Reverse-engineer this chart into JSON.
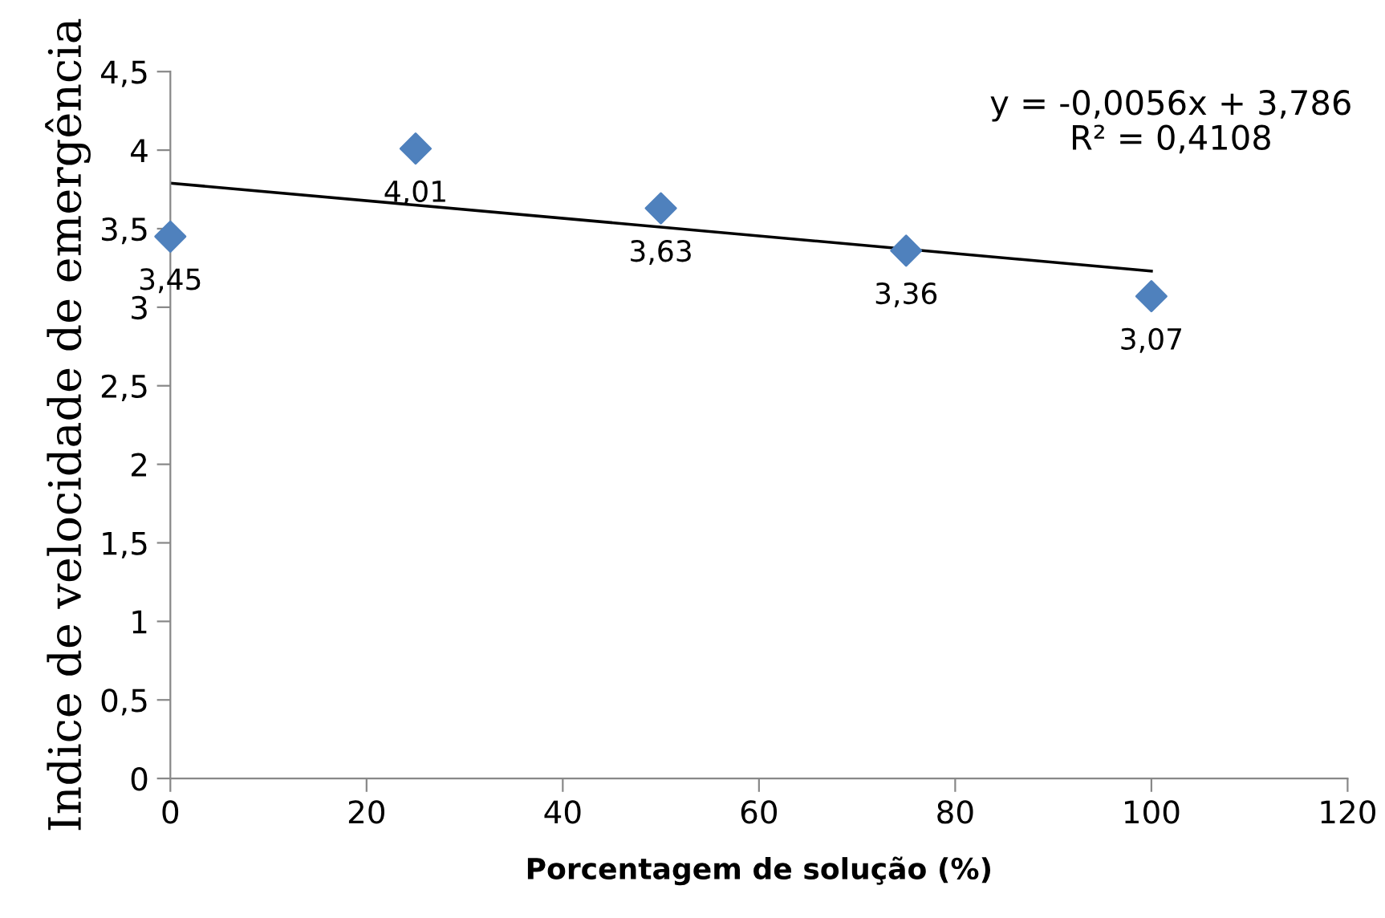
{
  "chart_data": {
    "type": "scatter",
    "xlabel": "Porcentagem de solução (%)",
    "ylabel": "Indice de velocidade de emergência",
    "series": [
      {
        "color": "#4f81bd",
        "x": [
          0,
          25,
          50,
          75,
          100
        ],
        "values": [
          3.45,
          4.01,
          3.63,
          3.36,
          3.07
        ],
        "value_labels": [
          "3,45",
          "4,01",
          "3,63",
          "3,36",
          "3,07"
        ],
        "marker": "diamond"
      },
      {
        "type": "line",
        "color": "#000000",
        "x": [
          0,
          100
        ],
        "values": [
          3.79,
          3.23
        ],
        "marker": "none"
      }
    ],
    "annotations": [
      "y = -0,0056x + 3,786\nR² = 0,4108"
    ],
    "xlim": [
      0,
      120
    ],
    "xticks": [
      0,
      20,
      40,
      60,
      80,
      100,
      120
    ],
    "ylim": [
      0,
      4.5
    ],
    "yticks": [
      0,
      {
        "value": 0.5,
        "label": "0,5"
      },
      1,
      {
        "value": 1.5,
        "label": "1,5"
      },
      2,
      {
        "value": 2.5,
        "label": "2,5"
      },
      3,
      {
        "value": 3.5,
        "label": "3,5"
      },
      4,
      {
        "value": 4.5,
        "label": "4,5"
      }
    ],
    "grid": false,
    "legend": false
  }
}
